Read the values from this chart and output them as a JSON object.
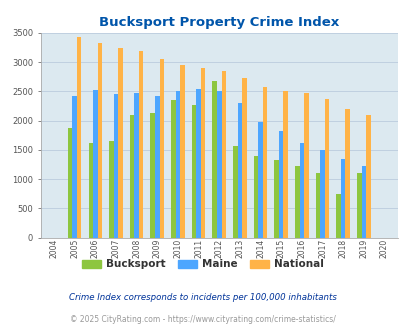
{
  "title": "Bucksport Property Crime Index",
  "years": [
    "2004",
    "2005",
    "2006",
    "2007",
    "2008",
    "2009",
    "2010",
    "2011",
    "2012",
    "2013",
    "2014",
    "2015",
    "2016",
    "2017",
    "2018",
    "2019",
    "2020"
  ],
  "bucksport": [
    0,
    1875,
    1625,
    1650,
    2100,
    2125,
    2350,
    2275,
    2675,
    1575,
    1400,
    1325,
    1225,
    1100,
    750,
    1100,
    0
  ],
  "maine": [
    0,
    2425,
    2525,
    2450,
    2475,
    2425,
    2500,
    2550,
    2500,
    2300,
    1975,
    1825,
    1625,
    1500,
    1350,
    1225,
    0
  ],
  "national": [
    0,
    3425,
    3325,
    3250,
    3200,
    3050,
    2950,
    2900,
    2850,
    2725,
    2575,
    2500,
    2475,
    2375,
    2200,
    2100,
    0
  ],
  "bucksport_color": "#8dc63f",
  "maine_color": "#4da6ff",
  "national_color": "#ffb347",
  "bg_color": "#dce9f0",
  "title_color": "#0055aa",
  "ylim": [
    0,
    3500
  ],
  "yticks": [
    0,
    500,
    1000,
    1500,
    2000,
    2500,
    3000,
    3500
  ],
  "footnote1": "Crime Index corresponds to incidents per 100,000 inhabitants",
  "footnote2": "© 2025 CityRating.com - https://www.cityrating.com/crime-statistics/",
  "footnote1_color": "#003399",
  "footnote2_color": "#999999"
}
